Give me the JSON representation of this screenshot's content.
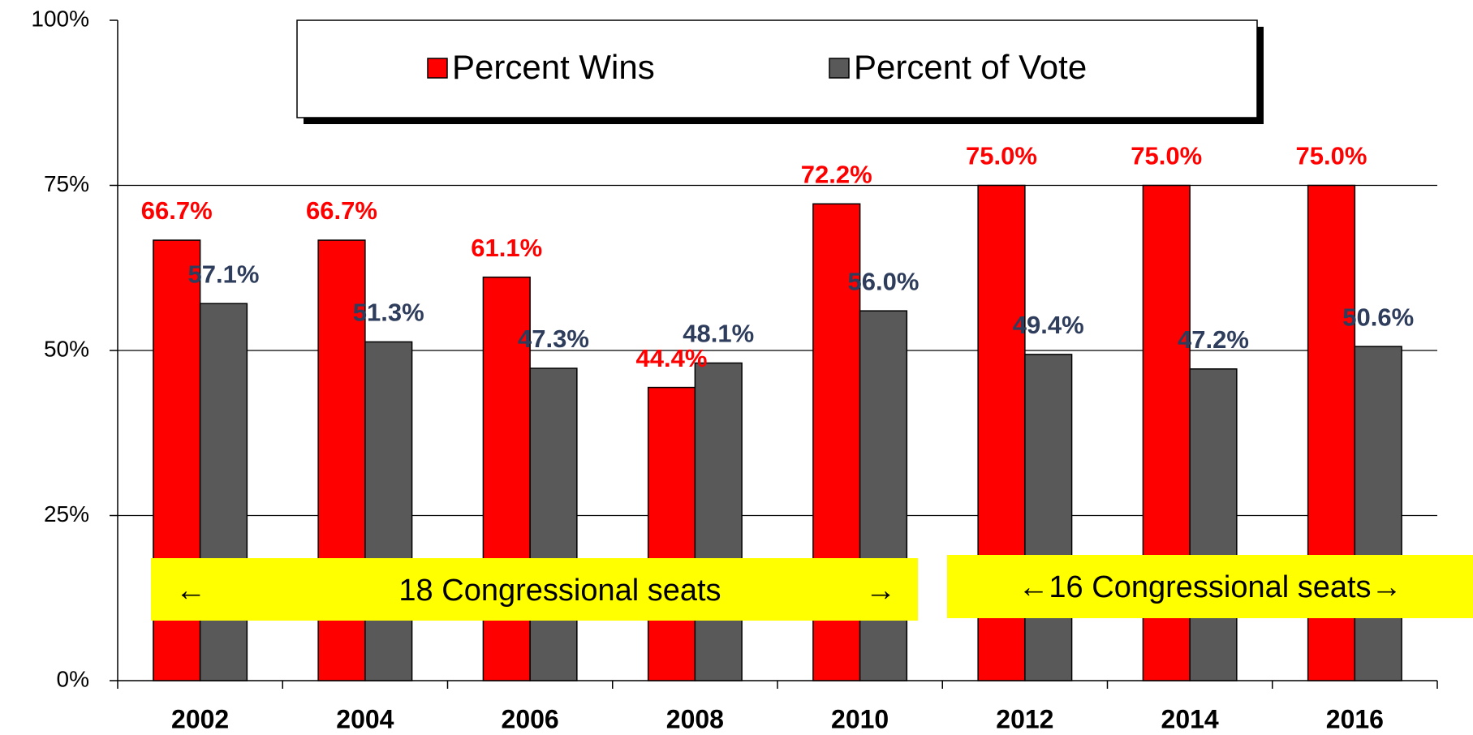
{
  "chart_data": {
    "type": "bar",
    "categories": [
      "2002",
      "2004",
      "2006",
      "2008",
      "2010",
      "2012",
      "2014",
      "2016"
    ],
    "series": [
      {
        "name": "Percent Wins",
        "color": "#ff0000",
        "label_color": "#ff0000",
        "values": [
          66.7,
          66.7,
          61.1,
          44.4,
          72.2,
          75.0,
          75.0,
          75.0
        ],
        "value_labels": [
          "66.7%",
          "66.7%",
          "61.1%",
          "44.4%",
          "72.2%",
          "75.0%",
          "75.0%",
          "75.0%"
        ]
      },
      {
        "name": "Percent of Vote",
        "color": "#595959",
        "label_color": "#2f3d5c",
        "values": [
          57.1,
          51.3,
          47.3,
          48.1,
          56.0,
          49.4,
          47.2,
          50.6
        ],
        "value_labels": [
          "57.1%",
          "51.3%",
          "47.3%",
          "48.1%",
          "56.0%",
          "49.4%",
          "47.2%",
          "50.6%"
        ]
      }
    ],
    "ylim": [
      0,
      100
    ],
    "yticks": [
      {
        "value": 0,
        "label": "0%"
      },
      {
        "value": 25,
        "label": "25%"
      },
      {
        "value": 50,
        "label": "50%"
      },
      {
        "value": 75,
        "label": "75%"
      },
      {
        "value": 100,
        "label": "100%"
      }
    ],
    "grid": true,
    "annotations": [
      {
        "texts": [
          "←",
          "18 Congressional seats",
          "→"
        ]
      },
      {
        "texts": [
          "←16 Congressional seats→"
        ]
      }
    ]
  }
}
